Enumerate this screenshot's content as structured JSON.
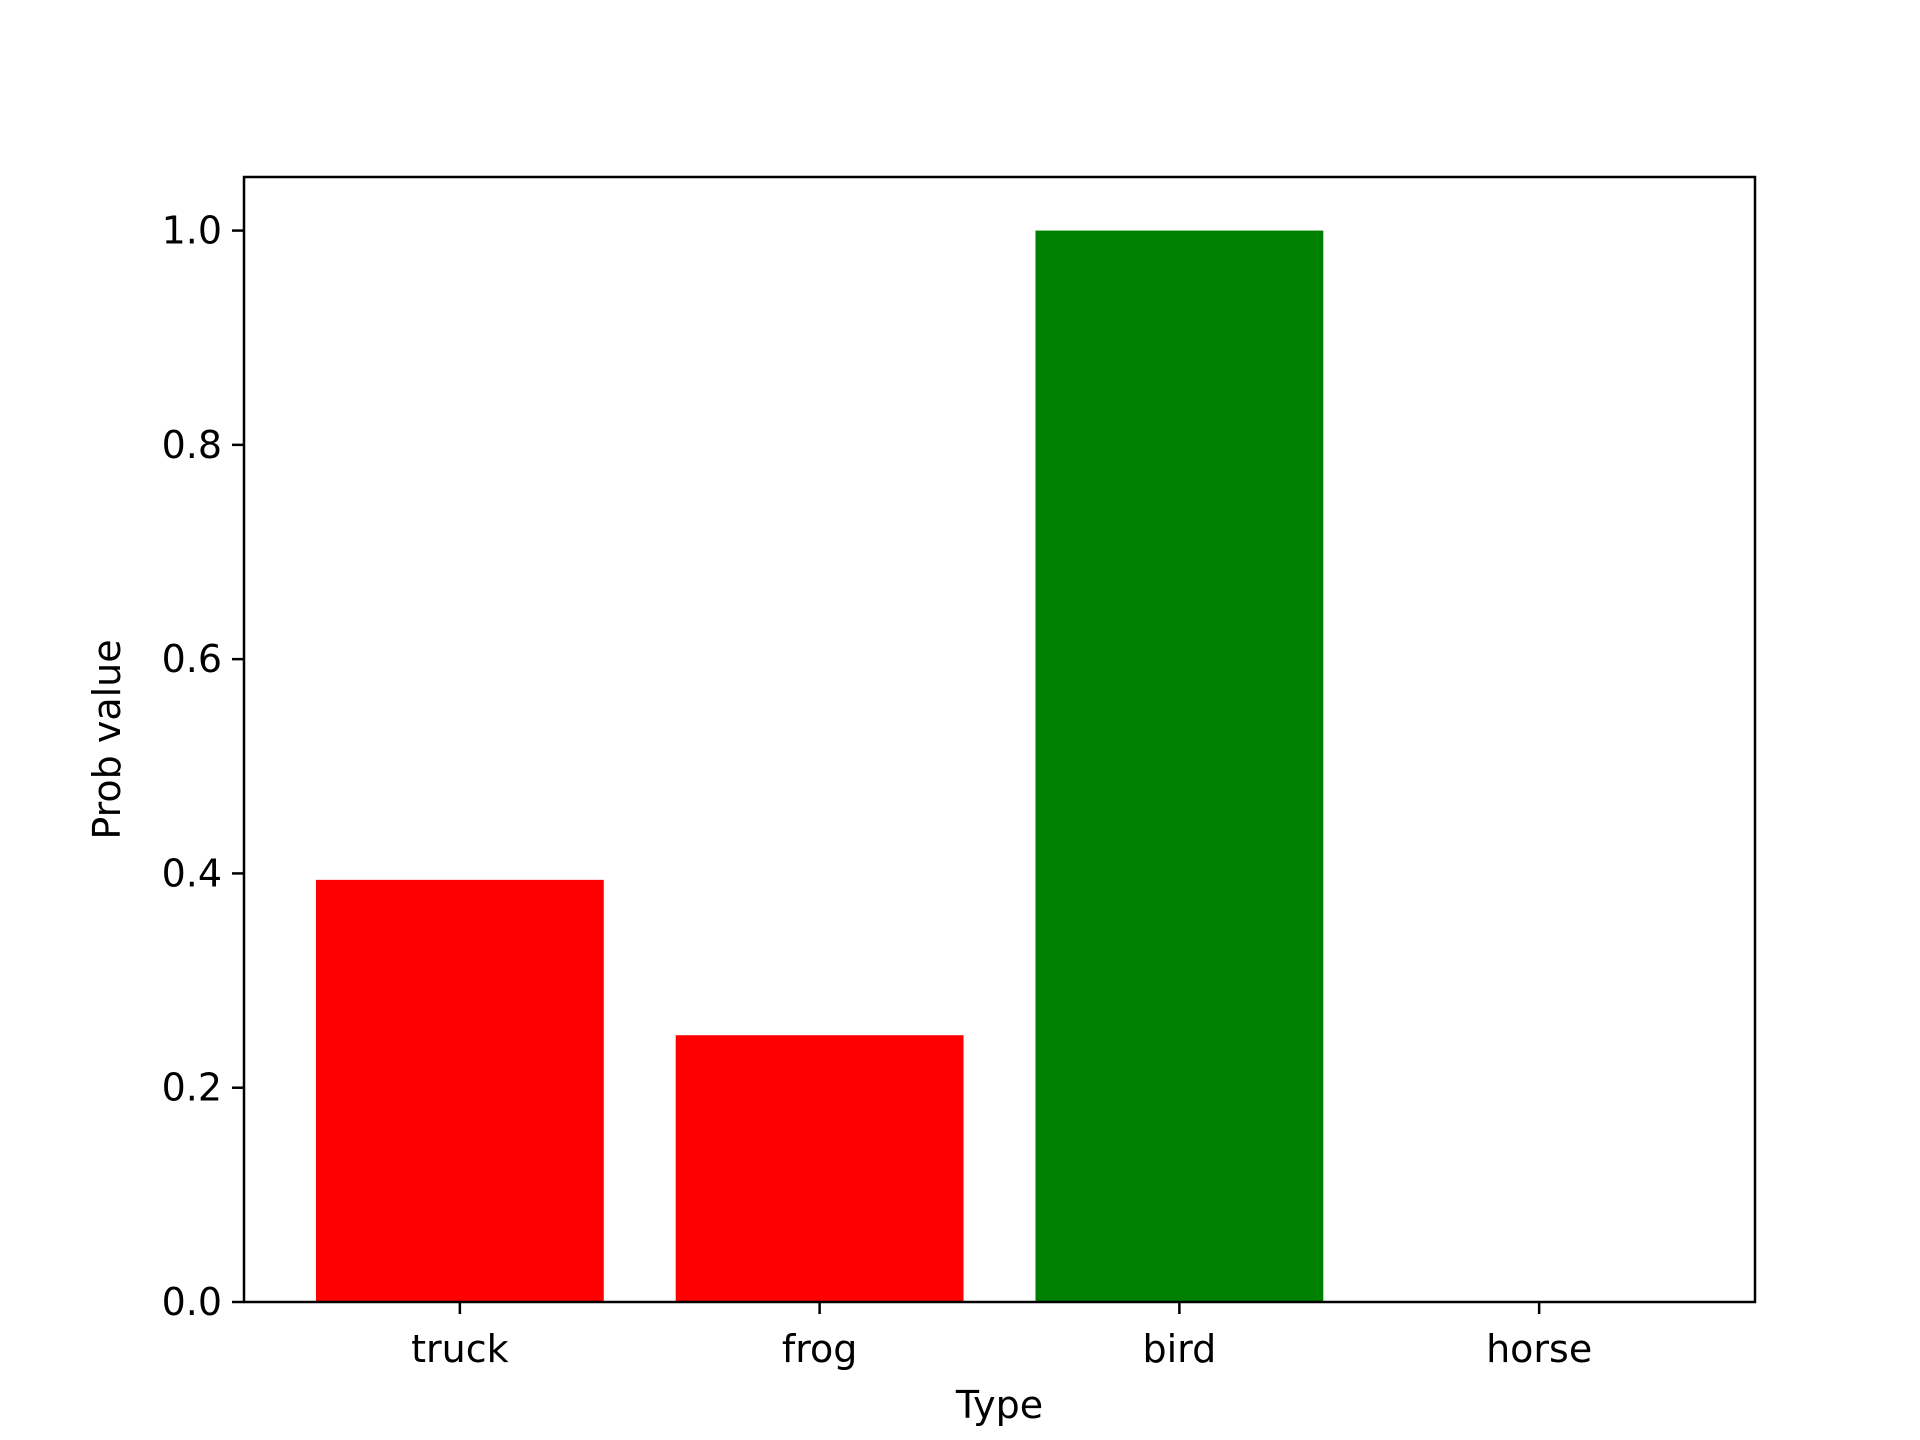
{
  "chart_data": {
    "type": "bar",
    "categories": [
      "truck",
      "frog",
      "bird",
      "horse"
    ],
    "values": [
      0.394,
      0.249,
      1.0,
      0.0
    ],
    "bar_colors": [
      "#ff0000",
      "#ff0000",
      "#008000",
      "#ff0000"
    ],
    "xlabel": "Type",
    "ylabel": "Prob value",
    "ylim": [
      0,
      1.05
    ],
    "yticks": [
      0.0,
      0.2,
      0.4,
      0.6,
      0.8,
      1.0
    ],
    "ytick_labels": [
      "0.0",
      "0.2",
      "0.4",
      "0.6",
      "0.8",
      "1.0"
    ],
    "grid": false,
    "legend": "none"
  }
}
